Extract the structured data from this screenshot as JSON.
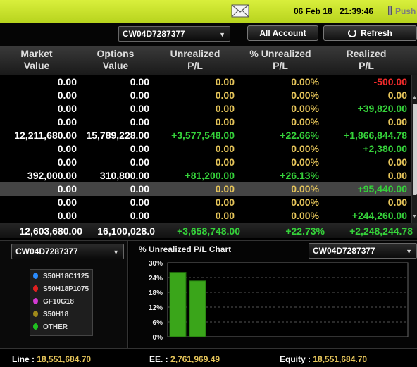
{
  "topbar": {
    "date": "06 Feb 18",
    "time": "21:39:46",
    "push_label": "Push"
  },
  "controls": {
    "account_select": "CW04D7287377",
    "all_account_label": "All Account",
    "refresh_label": "Refresh"
  },
  "table": {
    "headers": [
      {
        "l1": "Market",
        "l2": "Value"
      },
      {
        "l1": "Options",
        "l2": "Value"
      },
      {
        "l1": "Unrealized",
        "l2": "P/L"
      },
      {
        "l1": "% Unrealized",
        "l2": "P/L"
      },
      {
        "l1": "Realized",
        "l2": "P/L"
      }
    ],
    "rows": [
      {
        "mv": "0.00",
        "ov": "0.00",
        "up": "0.00",
        "pct": "0.00%",
        "rp": "-500.00",
        "rc": "rd"
      },
      {
        "mv": "0.00",
        "ov": "0.00",
        "up": "0.00",
        "pct": "0.00%",
        "rp": "0.00",
        "rc": "yl"
      },
      {
        "mv": "0.00",
        "ov": "0.00",
        "up": "0.00",
        "pct": "0.00%",
        "rp": "+39,820.00",
        "rc": "gr"
      },
      {
        "mv": "0.00",
        "ov": "0.00",
        "up": "0.00",
        "pct": "0.00%",
        "rp": "0.00",
        "rc": "yl"
      },
      {
        "mv": "12,211,680.00",
        "ov": "15,789,228.00",
        "up": "+3,577,548.00",
        "pct": "+22.66%",
        "rp": "+1,866,844.78",
        "rc": "gr",
        "uc": "gr"
      },
      {
        "mv": "0.00",
        "ov": "0.00",
        "up": "0.00",
        "pct": "0.00%",
        "rp": "+2,380.00",
        "rc": "gr"
      },
      {
        "mv": "0.00",
        "ov": "0.00",
        "up": "0.00",
        "pct": "0.00%",
        "rp": "0.00",
        "rc": "yl"
      },
      {
        "mv": "392,000.00",
        "ov": "310,800.00",
        "up": "+81,200.00",
        "pct": "+26.13%",
        "rp": "0.00",
        "rc": "yl",
        "uc": "gr"
      },
      {
        "mv": "0.00",
        "ov": "0.00",
        "up": "0.00",
        "pct": "0.00%",
        "rp": "+95,440.00",
        "rc": "gr",
        "sel": true
      },
      {
        "mv": "0.00",
        "ov": "0.00",
        "up": "0.00",
        "pct": "0.00%",
        "rp": "0.00",
        "rc": "yl"
      },
      {
        "mv": "0.00",
        "ov": "0.00",
        "up": "0.00",
        "pct": "0.00%",
        "rp": "+244,260.00",
        "rc": "gr"
      }
    ],
    "total": {
      "mv": "12,603,680.00",
      "ov": "16,100,028.0",
      "up": "+3,658,748.00",
      "pct": "+22.73%",
      "rp": "+2,248,244.78"
    }
  },
  "left_panel": {
    "account_select": "CW04D7287377",
    "legend": [
      {
        "label": "S50H18C1125",
        "color": "#2a8cff"
      },
      {
        "label": "S50H18P1075",
        "color": "#e02020"
      },
      {
        "label": "GF10G18",
        "color": "#d23ad2"
      },
      {
        "label": "S50H18",
        "color": "#a08a1a"
      },
      {
        "label": "OTHER",
        "color": "#20c020"
      }
    ]
  },
  "chart_panel": {
    "title": "% Unrealized P/L Chart",
    "account_select": "CW04D7287377"
  },
  "chart_data": {
    "type": "bar",
    "title": "% Unrealized P/L Chart",
    "categories": [
      "",
      ""
    ],
    "values": [
      26.13,
      22.66
    ],
    "yticks": [
      "0%",
      "6%",
      "12%",
      "18%",
      "24%",
      "30%"
    ],
    "ylim": [
      0,
      30
    ],
    "grid": true,
    "bar_color": "#3aa51a"
  },
  "footer": {
    "line_label": "Line :",
    "line_value": "18,551,684.70",
    "ee_label": "EE. :",
    "ee_value": "2,761,969.49",
    "equity_label": "Equity :",
    "equity_value": "18,551,684.70"
  }
}
